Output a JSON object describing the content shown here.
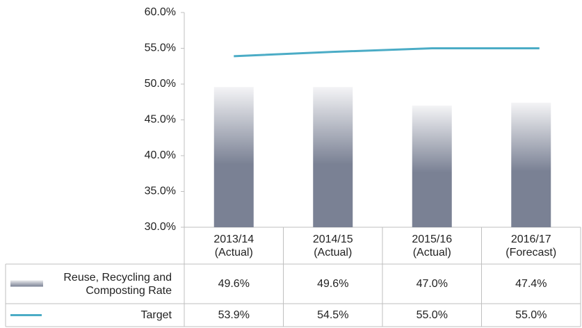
{
  "chart_data": {
    "type": "bar",
    "categories": [
      "2013/14 (Actual)",
      "2014/15 (Actual)",
      "2015/16 (Actual)",
      "2016/17 (Forecast)"
    ],
    "series": [
      {
        "name": "Reuse, Recycling and Composting Rate",
        "type": "bar",
        "color": "#7a8194",
        "values": [
          49.6,
          49.6,
          47.0,
          47.4
        ],
        "value_labels": [
          "49.6%",
          "49.6%",
          "47.0%",
          "47.4%"
        ]
      },
      {
        "name": "Target",
        "type": "line",
        "color": "#4bacc6",
        "values": [
          53.9,
          54.5,
          55.0,
          55.0
        ],
        "value_labels": [
          "53.9%",
          "54.5%",
          "55.0%",
          "55.0%"
        ]
      }
    ],
    "ylim": [
      30,
      60
    ],
    "yticks": [
      {
        "value": 30,
        "label": "30.0%"
      },
      {
        "value": 35,
        "label": "35.0%"
      },
      {
        "value": 40,
        "label": "40.0%"
      },
      {
        "value": 45,
        "label": "45.0%"
      },
      {
        "value": 50,
        "label": "50.0%"
      },
      {
        "value": 55,
        "label": "55.0%"
      },
      {
        "value": 60,
        "label": "60.0%"
      }
    ],
    "grid": false
  }
}
